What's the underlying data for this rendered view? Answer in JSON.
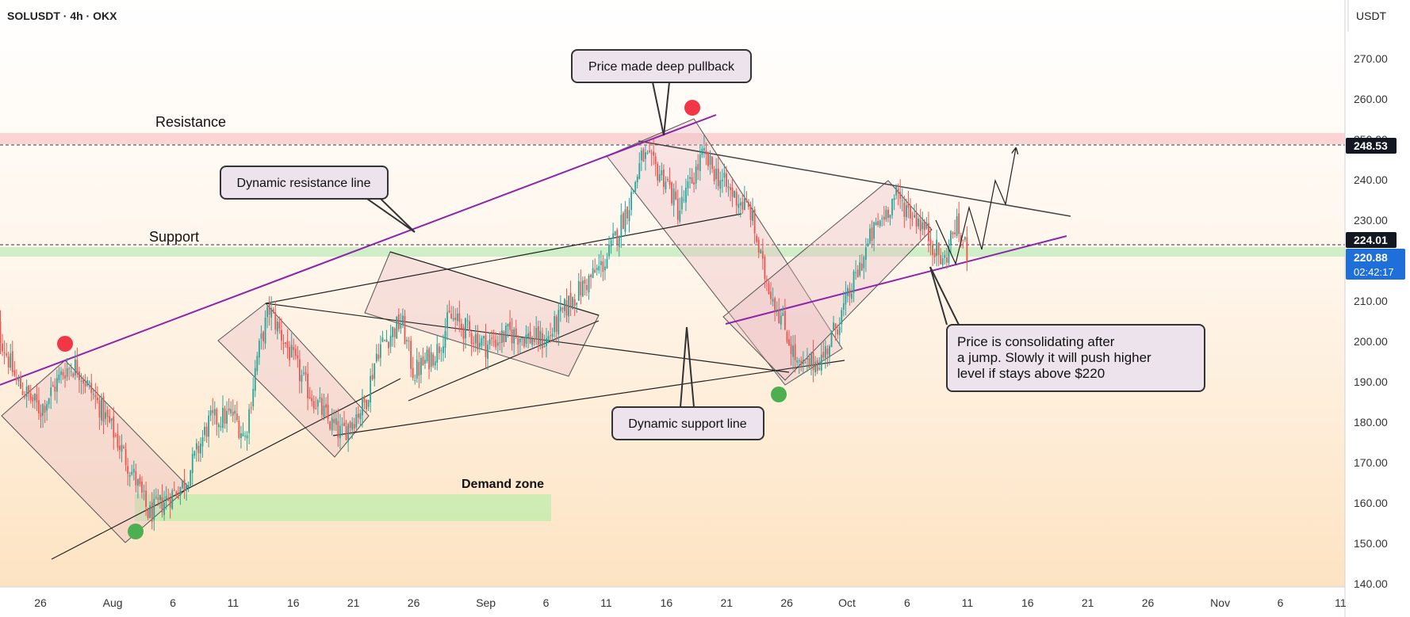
{
  "header": {
    "symbol": "SOLUSDT · 4h · OKX",
    "currency": "USDT"
  },
  "colors": {
    "up": "#26a69a",
    "down": "#ef5350",
    "purple": "#8e24aa",
    "resistance_zone": "#f8c8c8",
    "support_zone": "#c8ecc0",
    "demand_zone": "#c6ecae",
    "label_bg": "#ece3ec",
    "badge_dark": "#131722",
    "badge_blue": "#1e6fd9",
    "dot_red": "#f23645",
    "dot_green": "#4caf50"
  },
  "chart_data": {
    "type": "candlestick",
    "y_ticks": [
      "270.00",
      "260.00",
      "250.00",
      "240.00",
      "230.00",
      "220.00",
      "210.00",
      "200.00",
      "190.00",
      "180.00",
      "170.00",
      "160.00",
      "150.00",
      "140.00"
    ],
    "ylim": [
      140,
      275
    ],
    "x_ticks": [
      "26",
      "Aug",
      "6",
      "11",
      "16",
      "21",
      "26",
      "Sep",
      "6",
      "11",
      "16",
      "21",
      "26",
      "Oct",
      "6",
      "11",
      "16",
      "21",
      "26",
      "Nov",
      "6",
      "11"
    ],
    "x_tick_values": [
      "2024-07-26",
      "2024-08-01",
      "2024-08-06",
      "2024-08-11",
      "2024-08-16",
      "2024-08-21",
      "2024-08-26",
      "2024-09-01",
      "2024-09-06",
      "2024-09-11",
      "2024-09-16",
      "2024-09-21",
      "2024-09-26",
      "2024-10-01",
      "2024-10-06",
      "2024-10-11",
      "2024-10-16",
      "2024-10-21",
      "2024-10-26",
      "2024-11-01",
      "2024-11-06",
      "2024-11-11"
    ],
    "price_path": [
      [
        "2024-07-22",
        207
      ],
      [
        "2024-07-24",
        190
      ],
      [
        "2024-07-26",
        183
      ],
      [
        "2024-07-28",
        193
      ],
      [
        "2024-07-29",
        194
      ],
      [
        "2024-08-01",
        178
      ],
      [
        "2024-08-03",
        165
      ],
      [
        "2024-08-04",
        157
      ],
      [
        "2024-08-07",
        165
      ],
      [
        "2024-08-09",
        180
      ],
      [
        "2024-08-11",
        182
      ],
      [
        "2024-08-12",
        176
      ],
      [
        "2024-08-13",
        196
      ],
      [
        "2024-08-14",
        208
      ],
      [
        "2024-08-17",
        189
      ],
      [
        "2024-08-19",
        180
      ],
      [
        "2024-08-20",
        177
      ],
      [
        "2024-08-22",
        185
      ],
      [
        "2024-08-23",
        198
      ],
      [
        "2024-08-25",
        205
      ],
      [
        "2024-08-26",
        192
      ],
      [
        "2024-08-28",
        198
      ],
      [
        "2024-08-29",
        206
      ],
      [
        "2024-09-01",
        199
      ],
      [
        "2024-09-03",
        202
      ],
      [
        "2024-09-06",
        200
      ],
      [
        "2024-09-08",
        210
      ],
      [
        "2024-09-11",
        220
      ],
      [
        "2024-09-13",
        235
      ],
      [
        "2024-09-14",
        246
      ],
      [
        "2024-09-16",
        240
      ],
      [
        "2024-09-17",
        232
      ],
      [
        "2024-09-19",
        246
      ],
      [
        "2024-09-21",
        238
      ],
      [
        "2024-09-23",
        232
      ],
      [
        "2024-09-24",
        218
      ],
      [
        "2024-09-26",
        202
      ],
      [
        "2024-09-27",
        193
      ],
      [
        "2024-09-29",
        196
      ],
      [
        "2024-10-01",
        210
      ],
      [
        "2024-10-03",
        226
      ],
      [
        "2024-10-05",
        236
      ],
      [
        "2024-10-07",
        230
      ],
      [
        "2024-10-08",
        225
      ],
      [
        "2024-10-09",
        219
      ],
      [
        "2024-10-10",
        229
      ],
      [
        "2024-10-11",
        222
      ]
    ],
    "current_price": "220.88",
    "countdown": "02:42:17",
    "levels": [
      {
        "label": "Resistance",
        "price": "248.53",
        "zone": [
          248,
          251
        ]
      },
      {
        "label": "Support",
        "price": "224.01",
        "zone": [
          219,
          223
        ]
      }
    ],
    "demand_zone": {
      "label": "Demand zone",
      "range": [
        156,
        162
      ]
    },
    "annotations": [
      "Price made deep pullback",
      "Dynamic resistance line",
      "Dynamic support line",
      "Price is consolidating after",
      "a jump. Slowly it will push higher",
      "level if stays above $220"
    ]
  }
}
